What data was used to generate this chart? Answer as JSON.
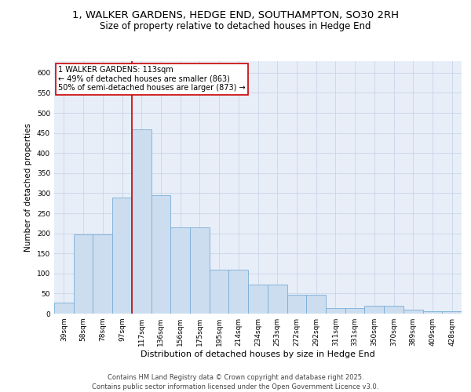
{
  "title_line1": "1, WALKER GARDENS, HEDGE END, SOUTHAMPTON, SO30 2RH",
  "title_line2": "Size of property relative to detached houses in Hedge End",
  "xlabel": "Distribution of detached houses by size in Hedge End",
  "ylabel": "Number of detached properties",
  "categories": [
    "39sqm",
    "58sqm",
    "78sqm",
    "97sqm",
    "117sqm",
    "136sqm",
    "156sqm",
    "175sqm",
    "195sqm",
    "214sqm",
    "234sqm",
    "253sqm",
    "272sqm",
    "292sqm",
    "311sqm",
    "331sqm",
    "350sqm",
    "370sqm",
    "389sqm",
    "409sqm",
    "428sqm"
  ],
  "values": [
    28,
    197,
    197,
    290,
    460,
    295,
    215,
    215,
    110,
    110,
    73,
    73,
    46,
    46,
    13,
    13,
    20,
    20,
    9,
    5,
    5
  ],
  "bar_color": "#ccddf0",
  "bar_edge_color": "#7aaed6",
  "grid_color": "#c8d4e8",
  "background_color": "#e8eef8",
  "annotation_box_text": "1 WALKER GARDENS: 113sqm\n← 49% of detached houses are smaller (863)\n50% of semi-detached houses are larger (873) →",
  "annotation_box_color": "#ffffff",
  "annotation_box_edge_color": "#cc0000",
  "vline_x": 3.5,
  "vline_color": "#cc0000",
  "ylim": [
    0,
    630
  ],
  "yticks": [
    0,
    50,
    100,
    150,
    200,
    250,
    300,
    350,
    400,
    450,
    500,
    550,
    600
  ],
  "footer_text": "Contains HM Land Registry data © Crown copyright and database right 2025.\nContains public sector information licensed under the Open Government Licence v3.0.",
  "title_fontsize": 9.5,
  "subtitle_fontsize": 8.5,
  "tick_fontsize": 6.5,
  "ylabel_fontsize": 7.5,
  "xlabel_fontsize": 8,
  "annotation_fontsize": 7,
  "footer_fontsize": 6
}
